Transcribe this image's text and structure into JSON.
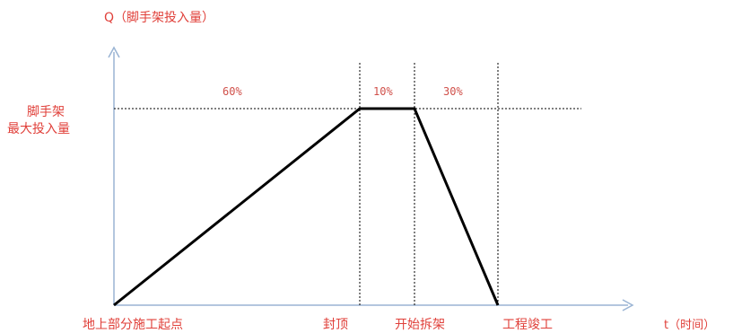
{
  "diagram": {
    "y_axis_label": "Q（脚手架投入量）",
    "x_axis_label": "t（时间）",
    "y_level_label_line1": "脚手架",
    "y_level_label_line2": "最大投入量",
    "phases": [
      {
        "percent": "60%"
      },
      {
        "percent": "10%"
      },
      {
        "percent": "30%"
      }
    ],
    "milestones": [
      {
        "label": "地上部分施工起点"
      },
      {
        "label": "封顶"
      },
      {
        "label": "开始拆架"
      },
      {
        "label": "工程竣工"
      }
    ],
    "colors": {
      "axis": "#9ab4d4",
      "curve": "#000000",
      "guide": "#000000",
      "label": "#e0403a"
    }
  }
}
